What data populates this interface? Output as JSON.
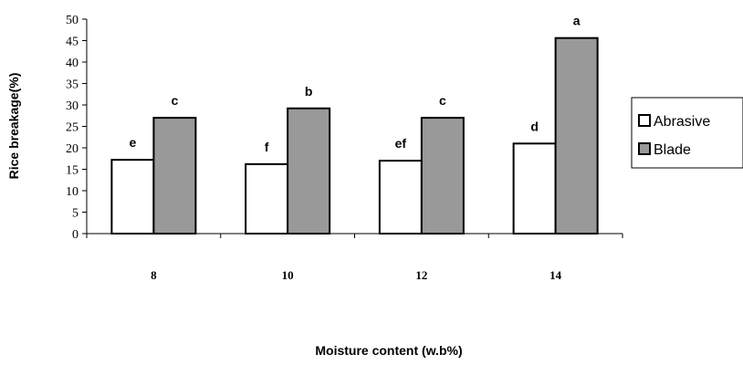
{
  "chart_data": {
    "type": "bar",
    "categories": [
      "8",
      "10",
      "12",
      "14"
    ],
    "series": [
      {
        "name": "Abrasive",
        "values": [
          17.2,
          16.2,
          17.0,
          21.0
        ],
        "labels": [
          "e",
          "f",
          "ef",
          "d"
        ],
        "color": "#ffffff"
      },
      {
        "name": "Blade",
        "values": [
          27.0,
          29.2,
          27.0,
          45.6
        ],
        "labels": [
          "c",
          "b",
          "c",
          "a"
        ],
        "color": "#999999"
      }
    ],
    "xlabel": "Moisture content (w.b%)",
    "ylabel": "Rice breakage(%)",
    "ylim": [
      0,
      50
    ],
    "yticks": [
      0,
      5,
      10,
      15,
      20,
      25,
      30,
      35,
      40,
      45,
      50
    ],
    "grid": false,
    "legend_position": "right"
  }
}
